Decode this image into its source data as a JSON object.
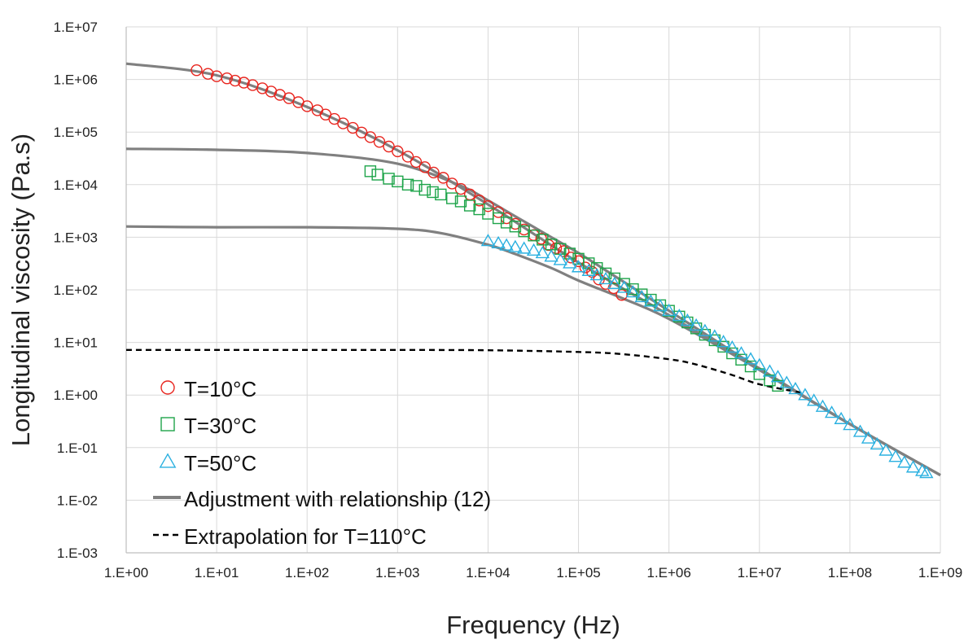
{
  "chart_data": {
    "type": "scatter",
    "xlabel": "Frequency (Hz)",
    "ylabel": "Longitudinal viscosity (Pa.s)",
    "x_scale": "log",
    "y_scale": "log",
    "xlim": [
      1,
      1000000000
    ],
    "ylim": [
      0.001,
      10000000
    ],
    "grid": true,
    "legend_position": "bottom-left",
    "x_ticks": [
      "1.E+00",
      "1.E+01",
      "1.E+02",
      "1.E+03",
      "1.E+04",
      "1.E+05",
      "1.E+06",
      "1.E+07",
      "1.E+08",
      "1.E+09"
    ],
    "y_ticks": [
      "1.E-03",
      "1.E-02",
      "1.E-01",
      "1.E+00",
      "1.E+01",
      "1.E+02",
      "1.E+03",
      "1.E+04",
      "1.E+05",
      "1.E+06",
      "1.E+07"
    ],
    "series": [
      {
        "name": "T=10°C",
        "kind": "markers",
        "marker": "circle",
        "color": "#e8251e",
        "x": [
          6,
          8,
          10,
          13,
          16,
          20,
          25,
          32,
          40,
          50,
          63,
          80,
          100,
          130,
          160,
          200,
          250,
          320,
          400,
          500,
          630,
          800,
          1000,
          1300,
          1600,
          2000,
          2500,
          3200,
          4000,
          5000,
          6300,
          8000,
          10000,
          13000,
          16000,
          20000,
          25000,
          32000,
          100000,
          200000,
          300000
        ],
        "y": [
          1500000,
          1280000,
          1150000,
          1050000,
          950000,
          870000,
          780000,
          680000,
          590000,
          510000,
          440000,
          370000,
          310000,
          260000,
          215000,
          178000,
          146000,
          120000,
          98000,
          80000,
          65000,
          53000,
          43000,
          34000,
          27000,
          21500,
          17000,
          13500,
          10500,
          8300,
          6500,
          5000,
          3900,
          3000,
          2300,
          1800,
          1400,
          1100,
          350,
          130,
          80
        ]
      },
      {
        "name": "T=30°C",
        "kind": "markers",
        "marker": "square",
        "color": "#1ea44a",
        "x": [
          500,
          600,
          800,
          1000,
          1300,
          2000,
          3000,
          4000,
          5000,
          6300,
          8000,
          10000,
          13000,
          16000,
          20000,
          25000,
          32000,
          40000,
          50000,
          63000,
          80000,
          100000,
          130000,
          160000,
          200000,
          250000,
          320000,
          400000,
          500000,
          630000,
          800000,
          1000000,
          1300000,
          1600000,
          2000000,
          2500000,
          3200000,
          4000000,
          5000000,
          6300000,
          8000000,
          10000000,
          13000000,
          16000000
        ],
        "y": [
          18000,
          15500,
          13000,
          11500,
          10000,
          8000,
          6500,
          5500,
          4800,
          4000,
          3400,
          2800,
          2300,
          1900,
          1600,
          1300,
          1080,
          900,
          730,
          600,
          490,
          390,
          320,
          260,
          205,
          165,
          130,
          103,
          82,
          65,
          51,
          40,
          31,
          24,
          18.5,
          14,
          11,
          8.3,
          6.2,
          4.7,
          3.5,
          2.5,
          1.9,
          1.5
        ]
      },
      {
        "name": "T=50°C",
        "kind": "markers",
        "marker": "triangle",
        "color": "#2ab0e0",
        "x": [
          10000,
          13000,
          16000,
          20000,
          25000,
          32000,
          40000,
          50000,
          63000,
          80000,
          100000,
          130000,
          160000,
          200000,
          250000,
          320000,
          400000,
          500000,
          630000,
          800000,
          1000000,
          1300000,
          1600000,
          2000000,
          2500000,
          3200000,
          4000000,
          5000000,
          6300000,
          8000000,
          10000000,
          13000000,
          16000000,
          20000000,
          25000000,
          32000000,
          40000000,
          50000000,
          63000000,
          80000000,
          100000000,
          130000000,
          160000000,
          200000000,
          250000000,
          320000000,
          400000000,
          500000000,
          630000000,
          700000000
        ],
        "y": [
          850,
          770,
          700,
          650,
          610,
          560,
          500,
          430,
          370,
          320,
          270,
          230,
          190,
          160,
          130,
          110,
          90,
          73,
          60,
          49,
          40,
          32,
          26,
          21,
          16.5,
          13,
          10.2,
          8,
          6.2,
          4.8,
          3.7,
          2.8,
          2.2,
          1.7,
          1.3,
          1.0,
          0.78,
          0.6,
          0.46,
          0.35,
          0.27,
          0.2,
          0.15,
          0.115,
          0.088,
          0.067,
          0.052,
          0.042,
          0.036,
          0.033
        ]
      },
      {
        "name": "Adjustment with relationship (12)",
        "kind": "line",
        "color": "#808080",
        "curves": [
          {
            "x": [
              1,
              10,
              100,
              1000,
              10000,
              100000,
              1000000,
              10000000,
              100000000,
              1000000000
            ],
            "y": [
              2000000,
              1200000,
              300000,
              45000,
              4200,
              330,
              33,
              3.0,
              0.28,
              0.03
            ]
          },
          {
            "x": [
              1,
              10,
              100,
              1000,
              5000,
              10000,
              20000,
              50000,
              100000,
              300000,
              1000000,
              10000000,
              100000000,
              1000000000
            ],
            "y": [
              48000,
              46000,
              40000,
              25000,
              9500,
              5000,
              2500,
              1000,
              500,
              150,
              40,
              3.2,
              0.28,
              0.03
            ]
          },
          {
            "x": [
              1,
              10,
              100,
              1000,
              3000,
              10000,
              20000,
              50000,
              100000,
              300000,
              1000000,
              10000000,
              100000000,
              1000000000
            ],
            "y": [
              1600,
              1550,
              1550,
              1450,
              1200,
              720,
              480,
              260,
              150,
              70,
              28,
              3.0,
              0.28,
              0.03
            ]
          }
        ]
      },
      {
        "name": "Extrapolation for T=110°C",
        "kind": "line",
        "dash": "dashed",
        "color": "#000000",
        "x": [
          1,
          10,
          100,
          1000,
          10000,
          100000,
          300000,
          1000000,
          2000000,
          5000000,
          10000000,
          30000000
        ],
        "y": [
          7.2,
          7.2,
          7.2,
          7.2,
          7.1,
          6.6,
          6.0,
          4.8,
          3.8,
          2.4,
          1.6,
          1.1
        ]
      }
    ]
  }
}
